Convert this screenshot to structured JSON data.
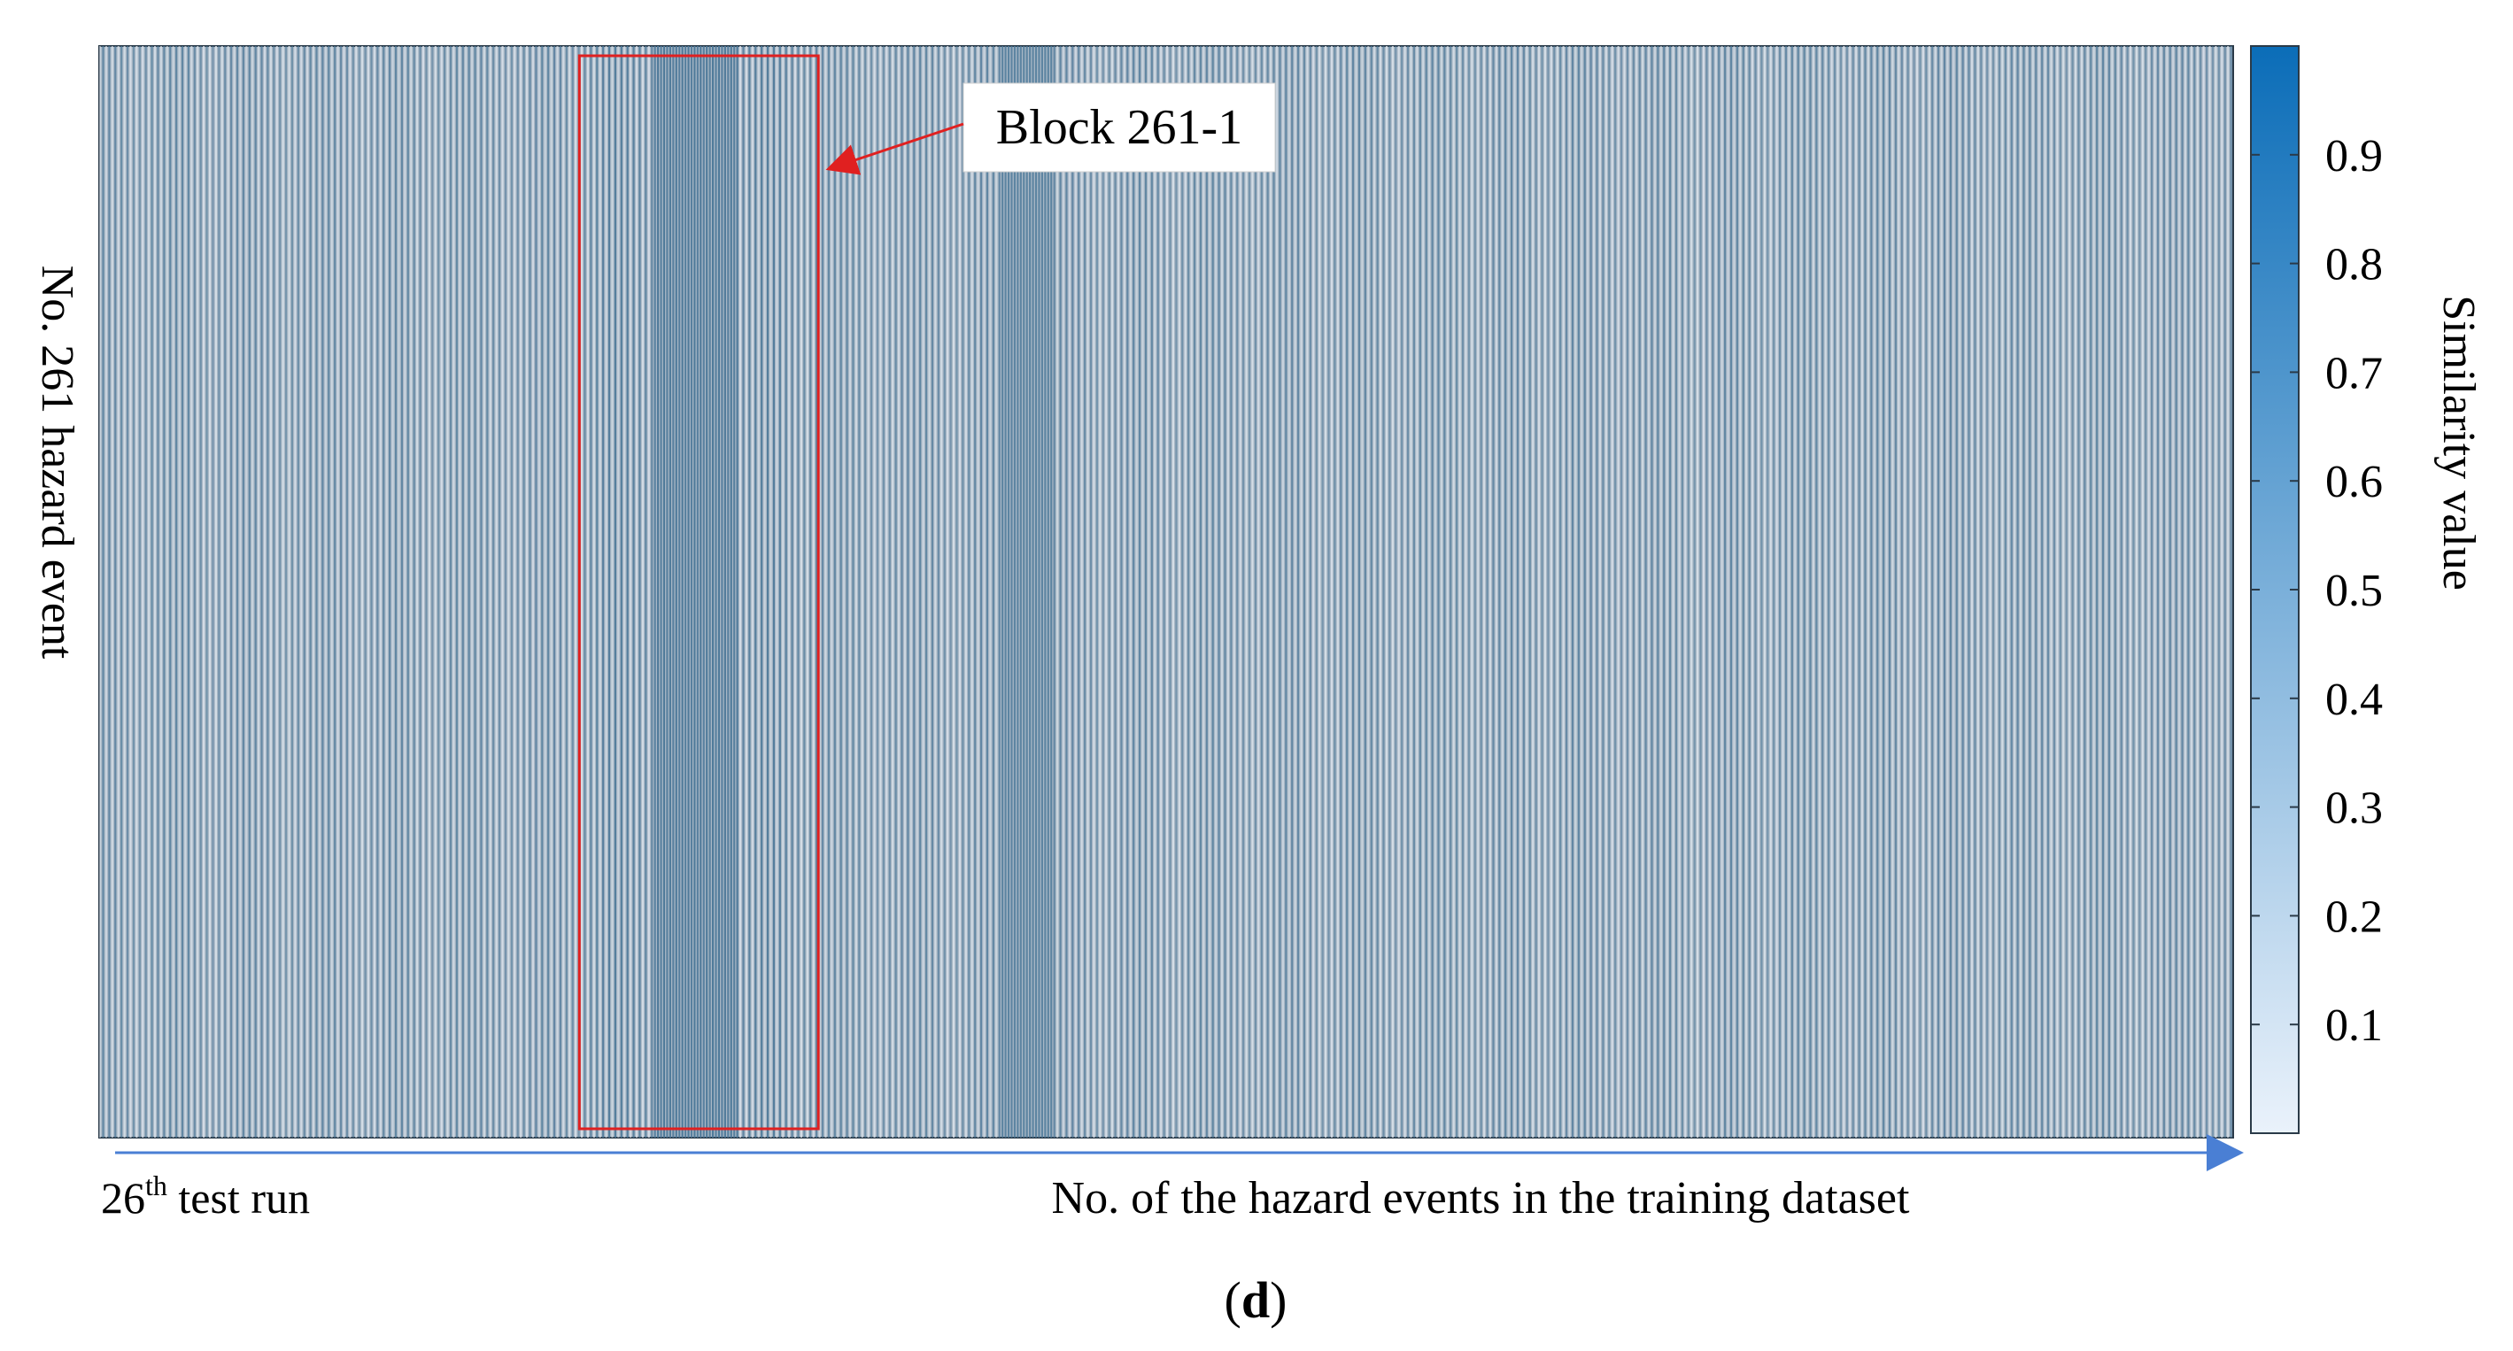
{
  "chart_data": {
    "type": "heatmap",
    "title": "",
    "ylabel": "No. 261 hazard event",
    "xlabel": "No. of the hazard events in the training dataset",
    "x_start_label": {
      "prefix": "26",
      "sup": "th",
      "suffix": " test run"
    },
    "rows": 1,
    "colorbar": {
      "label": "Similarity value",
      "range": [
        0,
        1
      ],
      "ticks": [
        "0.1",
        "0.2",
        "0.3",
        "0.4",
        "0.5",
        "0.6",
        "0.7",
        "0.8",
        "0.9"
      ],
      "colors": [
        "#eaf2fb",
        "#0b6db8"
      ]
    },
    "stripe_colors": {
      "light": "#dfe6ee",
      "dark": "#4f7a9a"
    },
    "columns_approx": 700,
    "dark_bands": [
      {
        "center_fraction": 0.28,
        "width_fraction": 0.02,
        "value": 0.75
      },
      {
        "center_fraction": 0.435,
        "width_fraction": 0.012,
        "value": 0.62
      }
    ],
    "annotation": {
      "label": "Block 261-1",
      "box_start_fraction": 0.225,
      "box_end_fraction": 0.337,
      "color": "#e02020"
    },
    "panel_label": {
      "open": "(",
      "letter": "d",
      "close": ")"
    }
  }
}
